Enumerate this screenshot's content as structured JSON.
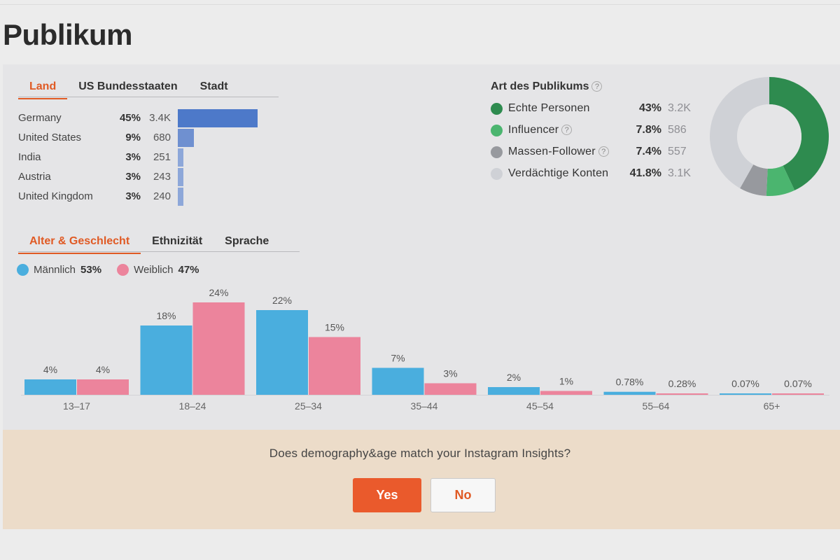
{
  "page": {
    "title": "Publikum"
  },
  "geo_tabs": [
    "Land",
    "US Bundesstaaten",
    "Stadt"
  ],
  "countries": [
    {
      "name": "Germany",
      "pct": "45%",
      "count": "3.4K",
      "share": 45
    },
    {
      "name": "United States",
      "pct": "9%",
      "count": "680",
      "share": 9
    },
    {
      "name": "India",
      "pct": "3%",
      "count": "251",
      "share": 3
    },
    {
      "name": "Austria",
      "pct": "3%",
      "count": "243",
      "share": 3
    },
    {
      "name": "United Kingdom",
      "pct": "3%",
      "count": "240",
      "share": 3
    }
  ],
  "audience_type": {
    "title": "Art des Publikums",
    "help_icon": "?",
    "items": [
      {
        "label": "Echte Personen",
        "pct": "43%",
        "count": "3.2K",
        "value": 43,
        "color": "#2e8b4f",
        "help": false
      },
      {
        "label": "Influencer",
        "pct": "7.8%",
        "count": "586",
        "value": 7.8,
        "color": "#4bb56f",
        "help": true
      },
      {
        "label": "Massen-Follower",
        "pct": "7.4%",
        "count": "557",
        "value": 7.4,
        "color": "#97999e",
        "help": true
      },
      {
        "label": "Verdächtige Konten",
        "pct": "41.8%",
        "count": "3.1K",
        "value": 41.8,
        "color": "#cfd1d6",
        "help": false
      }
    ]
  },
  "demo_tabs": [
    "Alter & Geschlecht",
    "Ethnizität",
    "Sprache"
  ],
  "legend": {
    "male": {
      "label": "Männlich",
      "value": "53%",
      "color": "#4aaede"
    },
    "female": {
      "label": "Weiblich",
      "value": "47%",
      "color": "#ec849c"
    }
  },
  "chart_data": {
    "type": "bar",
    "categories": [
      "13–17",
      "18–24",
      "25–34",
      "35–44",
      "45–54",
      "55–64",
      "65+"
    ],
    "series": [
      {
        "name": "Männlich",
        "values": [
          4,
          18,
          22,
          7,
          2,
          0.78,
          0.07
        ],
        "labels": [
          "4%",
          "18%",
          "22%",
          "7%",
          "2%",
          "0.78%",
          "0.07%"
        ]
      },
      {
        "name": "Weiblich",
        "values": [
          4,
          24,
          15,
          3,
          1,
          0.28,
          0.07
        ],
        "labels": [
          "4%",
          "24%",
          "15%",
          "3%",
          "1%",
          "0.28%",
          "0.07%"
        ]
      }
    ],
    "colors": [
      "#4aaede",
      "#ec849c"
    ],
    "ylim": [
      0,
      24
    ]
  },
  "footer": {
    "question": "Does demography&age match your Instagram Insights?",
    "yes_label": "Yes",
    "no_label": "No"
  }
}
